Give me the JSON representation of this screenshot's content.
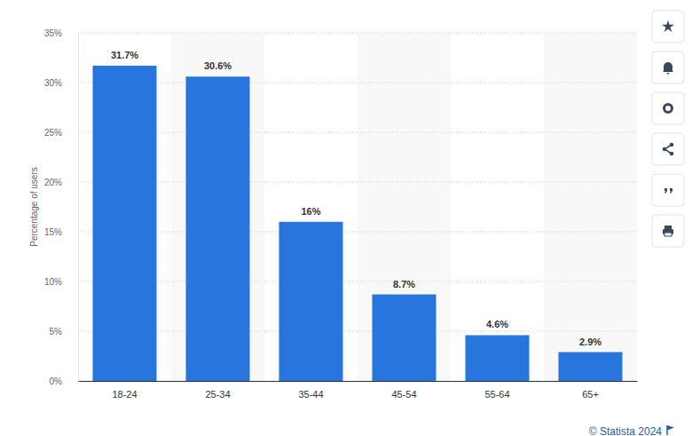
{
  "chart_data": {
    "type": "bar",
    "y_label": "Percentage of users",
    "source": "© Statista 2024",
    "categories": [
      "18-24",
      "25-34",
      "35-44",
      "45-54",
      "55-64",
      "65+"
    ],
    "values": [
      31.7,
      30.6,
      16,
      8.7,
      4.6,
      2.9
    ],
    "value_labels": [
      "31.7%",
      "30.6%",
      "16%",
      "8.7%",
      "4.6%",
      "2.9%"
    ],
    "color": "#2876dd",
    "ylim": [
      0,
      35
    ],
    "yticks": [
      {
        "value": 0,
        "label": "0%"
      },
      {
        "value": 5,
        "label": "5%"
      },
      {
        "value": 10,
        "label": "10%"
      },
      {
        "value": 15,
        "label": "15%"
      },
      {
        "value": 20,
        "label": "20%"
      },
      {
        "value": 25,
        "label": "25%"
      },
      {
        "value": 30,
        "label": "30%"
      },
      {
        "value": 35,
        "label": "35%"
      }
    ],
    "grid": true,
    "data_labels": true
  }
}
